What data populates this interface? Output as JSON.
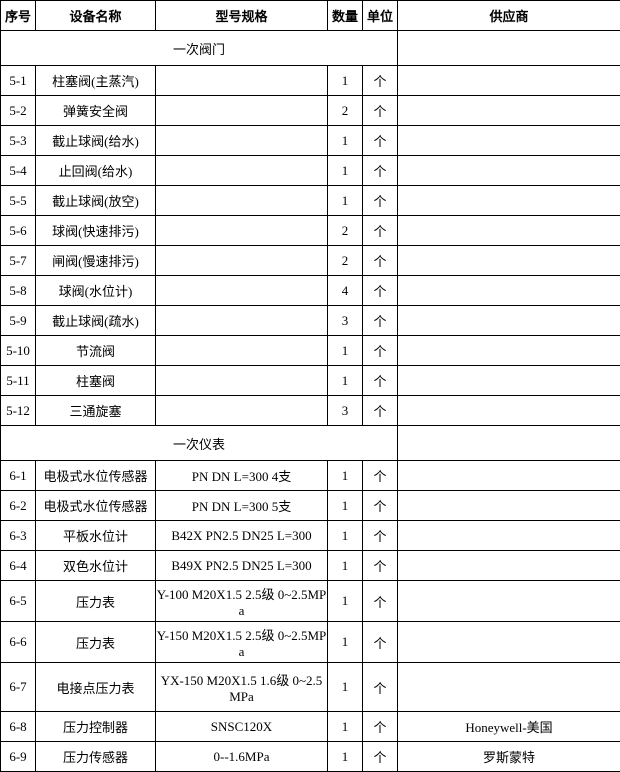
{
  "headers": {
    "seq": "序号",
    "name": "设备名称",
    "spec": "型号规格",
    "qty": "数量",
    "unit": "单位",
    "supplier": "供应商"
  },
  "sections": [
    {
      "title": "一次阀门",
      "rows": [
        {
          "seq": "5-1",
          "name": "柱塞阀(主蒸汽)",
          "spec": "",
          "qty": "1",
          "unit": "个",
          "sup": ""
        },
        {
          "seq": "5-2",
          "name": "弹簧安全阀",
          "spec": "",
          "qty": "2",
          "unit": "个",
          "sup": ""
        },
        {
          "seq": "5-3",
          "name": "截止球阀(给水)",
          "spec": "",
          "qty": "1",
          "unit": "个",
          "sup": ""
        },
        {
          "seq": "5-4",
          "name": "止回阀(给水)",
          "spec": "",
          "qty": "1",
          "unit": "个",
          "sup": ""
        },
        {
          "seq": "5-5",
          "name": "截止球阀(放空)",
          "spec": "",
          "qty": "1",
          "unit": "个",
          "sup": ""
        },
        {
          "seq": "5-6",
          "name": "球阀(快速排污)",
          "spec": "",
          "qty": "2",
          "unit": "个",
          "sup": ""
        },
        {
          "seq": "5-7",
          "name": "闸阀(慢速排污)",
          "spec": "",
          "qty": "2",
          "unit": "个",
          "sup": ""
        },
        {
          "seq": "5-8",
          "name": "球阀(水位计)",
          "spec": "",
          "qty": "4",
          "unit": "个",
          "sup": ""
        },
        {
          "seq": "5-9",
          "name": "截止球阀(疏水)",
          "spec": "",
          "qty": "3",
          "unit": "个",
          "sup": ""
        },
        {
          "seq": "5-10",
          "name": "节流阀",
          "spec": "",
          "qty": "1",
          "unit": "个",
          "sup": ""
        },
        {
          "seq": "5-11",
          "name": "柱塞阀",
          "spec": "",
          "qty": "1",
          "unit": "个",
          "sup": ""
        },
        {
          "seq": "5-12",
          "name": "三通旋塞",
          "spec": "",
          "qty": "3",
          "unit": "个",
          "sup": ""
        }
      ]
    },
    {
      "title": "一次仪表",
      "rows": [
        {
          "seq": "6-1",
          "name": "电极式水位传感器",
          "spec": "PN   DN  L=300  4支",
          "qty": "1",
          "unit": "个",
          "sup": ""
        },
        {
          "seq": "6-2",
          "name": "电极式水位传感器",
          "spec": "PN   DN  L=300  5支",
          "qty": "1",
          "unit": "个",
          "sup": ""
        },
        {
          "seq": "6-3",
          "name": "平板水位计",
          "spec": "B42X  PN2.5  DN25  L=300",
          "qty": "1",
          "unit": "个",
          "sup": ""
        },
        {
          "seq": "6-4",
          "name": "双色水位计",
          "spec": "B49X  PN2.5  DN25  L=300",
          "qty": "1",
          "unit": "个",
          "sup": ""
        },
        {
          "seq": "6-5",
          "name": "压力表",
          "spec": "Y-100 M20X1.5 2.5级 0~2.5MPa",
          "qty": "1",
          "unit": "个",
          "sup": "",
          "tall": true
        },
        {
          "seq": "6-6",
          "name": "压力表",
          "spec": "Y-150 M20X1.5 2.5级 0~2.5MPa",
          "qty": "1",
          "unit": "个",
          "sup": "",
          "tall": true
        },
        {
          "seq": "6-7",
          "name": "电接点压力表",
          "spec": "YX-150 M20X1.5 1.6级 0~2.5MPa",
          "qty": "1",
          "unit": "个",
          "sup": "",
          "taller": true
        },
        {
          "seq": "6-8",
          "name": "压力控制器",
          "spec": "SNSC120X",
          "qty": "1",
          "unit": "个",
          "sup": "Honeywell-美国"
        },
        {
          "seq": "6-9",
          "name": "压力传感器",
          "spec": "0--1.6MPa",
          "qty": "1",
          "unit": "个",
          "sup": "罗斯蒙特"
        }
      ]
    }
  ]
}
